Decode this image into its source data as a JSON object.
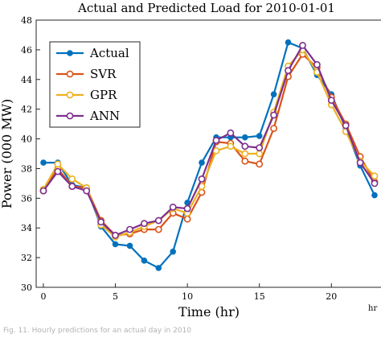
{
  "chart_data": {
    "type": "line",
    "title": "Actual and Predicted Load for 2010-01-01",
    "xlabel": "Time (hr)",
    "ylabel": "Power (000 MW)",
    "x_unit_label": "hr",
    "xlim": [
      -0.5,
      23.5
    ],
    "ylim": [
      30,
      48
    ],
    "xticks": [
      0,
      5,
      10,
      15,
      20
    ],
    "yticks": [
      30,
      32,
      34,
      36,
      38,
      40,
      42,
      44,
      46,
      48
    ],
    "grid": false,
    "legend_position": "top-left",
    "x": [
      0,
      1,
      2,
      3,
      4,
      5,
      6,
      7,
      8,
      9,
      10,
      11,
      12,
      13,
      14,
      15,
      16,
      17,
      18,
      19,
      20,
      21,
      22,
      23
    ],
    "series": [
      {
        "name": "Actual",
        "color": "#0072BD",
        "marker": "filled-circle",
        "values": [
          38.4,
          38.4,
          36.9,
          36.7,
          34.1,
          32.9,
          32.8,
          31.8,
          31.3,
          32.4,
          35.7,
          38.4,
          40.1,
          40.1,
          40.1,
          40.2,
          43.0,
          46.5,
          46.1,
          44.3,
          43.0,
          40.7,
          38.2,
          36.2
        ]
      },
      {
        "name": "SVR",
        "color": "#D95319",
        "marker": "open-circle",
        "values": [
          36.5,
          38.0,
          36.8,
          36.7,
          34.5,
          33.5,
          33.6,
          33.9,
          33.9,
          35.0,
          34.6,
          36.4,
          39.8,
          39.7,
          38.5,
          38.3,
          40.7,
          44.2,
          45.7,
          44.8,
          42.8,
          41.0,
          38.8,
          37.1
        ]
      },
      {
        "name": "GPR",
        "color": "#EDB120",
        "marker": "open-circle",
        "values": [
          36.6,
          38.3,
          37.3,
          36.7,
          34.2,
          33.4,
          33.7,
          34.1,
          34.5,
          35.3,
          35.0,
          36.8,
          39.2,
          39.5,
          39.0,
          39.0,
          41.8,
          44.9,
          46.0,
          44.5,
          42.3,
          40.5,
          38.5,
          37.5
        ]
      },
      {
        "name": "ANN",
        "color": "#7E2F8E",
        "marker": "open-circle",
        "values": [
          36.5,
          37.8,
          36.8,
          36.5,
          34.4,
          33.5,
          33.9,
          34.3,
          34.5,
          35.4,
          35.3,
          37.3,
          39.9,
          40.4,
          39.5,
          39.4,
          41.6,
          44.6,
          46.3,
          45.0,
          42.6,
          40.9,
          38.4,
          37.0
        ]
      }
    ]
  },
  "caption": "Fig. 11. Hourly predictions for an actual day in 2010"
}
